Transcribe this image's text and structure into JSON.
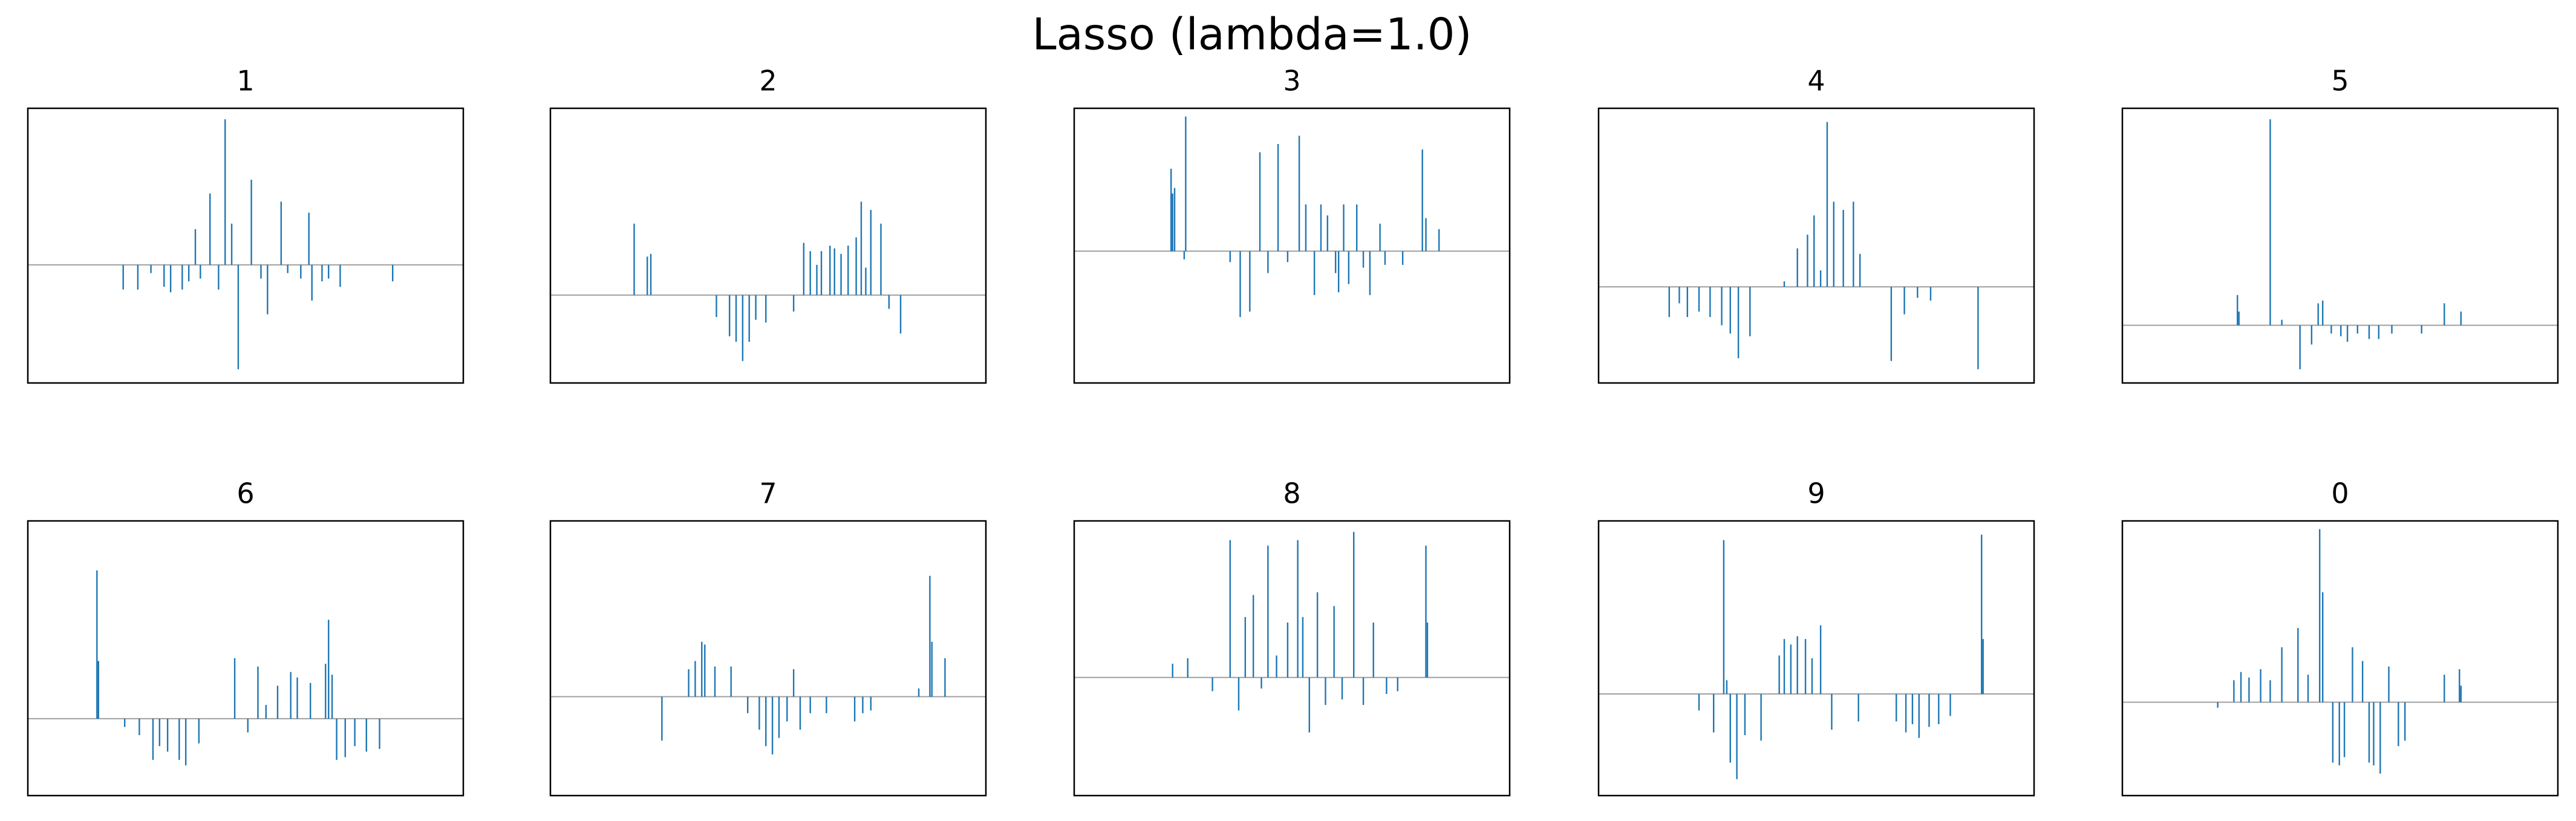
{
  "title": "Lasso (lambda=1.0)",
  "chart_data": [
    {
      "type": "bar",
      "title": "1",
      "color": "#1f77b4",
      "xlim": [
        -40,
        823
      ],
      "ylim": [
        -4.3,
        5.7
      ],
      "x": [
        149,
        178,
        204,
        230,
        243,
        266,
        279,
        292,
        302,
        321,
        338,
        351,
        364,
        377,
        403,
        422,
        435,
        462,
        475,
        501,
        517,
        523,
        543,
        556,
        579,
        683
      ],
      "values": [
        -0.9,
        -0.9,
        -0.3,
        -0.8,
        -1.0,
        -0.9,
        -0.6,
        1.3,
        -0.5,
        2.6,
        -0.9,
        5.3,
        1.5,
        -3.8,
        3.1,
        -0.5,
        -1.8,
        2.3,
        -0.3,
        -0.5,
        1.9,
        -1.3,
        -0.6,
        -0.5,
        -0.8,
        -0.6
      ]
    },
    {
      "type": "bar",
      "title": "2",
      "color": "#1f77b4",
      "xlim": [
        -40,
        823
      ],
      "ylim": [
        -3.2,
        6.8
      ],
      "x": [
        126,
        152,
        159,
        289,
        315,
        328,
        341,
        354,
        367,
        387,
        442,
        462,
        475,
        488,
        497,
        514,
        523,
        536,
        550,
        566,
        576,
        585,
        595,
        615,
        631,
        654
      ],
      "values": [
        2.6,
        1.4,
        1.5,
        -0.8,
        -1.5,
        -1.7,
        -2.4,
        -1.7,
        -0.9,
        -1.0,
        -0.6,
        1.9,
        1.6,
        1.1,
        1.6,
        1.8,
        1.7,
        1.5,
        1.8,
        2.1,
        3.4,
        1.0,
        3.1,
        2.6,
        -0.5,
        -1.4
      ]
    },
    {
      "type": "bar",
      "title": "3",
      "color": "#1f77b4",
      "xlim": [
        -40,
        823
      ],
      "ylim": [
        -4.8,
        5.2
      ],
      "x": [
        152,
        155,
        159,
        178,
        181,
        269,
        289,
        308,
        328,
        344,
        364,
        383,
        406,
        419,
        436,
        449,
        462,
        478,
        484,
        494,
        504,
        520,
        533,
        546,
        566,
        576,
        611,
        650,
        657,
        683
      ],
      "values": [
        3.0,
        2.1,
        2.3,
        -0.3,
        4.9,
        -0.4,
        -2.4,
        -2.2,
        3.6,
        -0.8,
        3.9,
        -0.4,
        4.2,
        1.7,
        -1.6,
        1.7,
        1.3,
        -0.8,
        -1.5,
        1.7,
        -1.2,
        1.7,
        -0.6,
        -1.6,
        1.0,
        -0.5,
        -0.5,
        3.7,
        1.2,
        0.8
      ]
    },
    {
      "type": "bar",
      "title": "4",
      "color": "#1f77b4",
      "xlim": [
        -40,
        823
      ],
      "ylim": [
        -3.5,
        6.5
      ],
      "x": [
        100,
        120,
        136,
        159,
        181,
        204,
        221,
        237,
        260,
        328,
        354,
        374,
        387,
        400,
        413,
        426,
        445,
        465,
        478,
        540,
        566,
        592,
        618,
        712
      ],
      "values": [
        -1.1,
        -0.6,
        -1.1,
        -0.9,
        -1.1,
        -1.4,
        -1.7,
        -2.6,
        -1.8,
        0.2,
        1.4,
        1.9,
        2.6,
        0.6,
        6.0,
        3.1,
        2.8,
        3.1,
        1.2,
        -2.7,
        -1.0,
        -0.4,
        -0.5,
        -3.0
      ]
    },
    {
      "type": "bar",
      "title": "5",
      "color": "#1f77b4",
      "xlim": [
        -40,
        823
      ],
      "ylim": [
        -2.1,
        7.9
      ],
      "x": [
        188,
        191,
        253,
        276,
        312,
        335,
        348,
        357,
        374,
        393,
        406,
        426,
        449,
        468,
        494,
        553,
        598,
        631
      ],
      "values": [
        1.1,
        0.5,
        7.5,
        0.2,
        -1.6,
        -0.7,
        0.8,
        0.9,
        -0.3,
        -0.4,
        -0.6,
        -0.3,
        -0.5,
        -0.5,
        -0.3,
        -0.3,
        0.8,
        0.5
      ]
    },
    {
      "type": "bar",
      "title": "6",
      "color": "#1f77b4",
      "xlim": [
        -40,
        823
      ],
      "ylim": [
        -2.8,
        7.2
      ],
      "x": [
        97,
        100,
        152,
        181,
        208,
        221,
        237,
        260,
        273,
        299,
        370,
        396,
        416,
        432,
        455,
        481,
        494,
        520,
        550,
        556,
        563,
        572,
        589,
        608,
        631,
        657
      ],
      "values": [
        5.4,
        2.1,
        -0.3,
        -0.6,
        -1.5,
        -1.0,
        -1.2,
        -1.5,
        -1.7,
        -0.9,
        2.2,
        -0.5,
        1.9,
        0.5,
        1.2,
        1.7,
        1.5,
        1.3,
        2.0,
        3.6,
        1.6,
        -1.5,
        -1.4,
        -1.0,
        -1.2,
        -1.1
      ]
    },
    {
      "type": "bar",
      "title": "7",
      "color": "#1f77b4",
      "xlim": [
        -40,
        823
      ],
      "ylim": [
        -3.6,
        6.4
      ],
      "x": [
        181,
        234,
        247,
        260,
        266,
        286,
        318,
        351,
        374,
        387,
        400,
        413,
        429,
        442,
        455,
        475,
        507,
        563,
        579,
        595,
        690,
        712,
        716,
        742
      ],
      "values": [
        -1.6,
        1.0,
        1.3,
        2.0,
        1.9,
        1.1,
        1.1,
        -0.6,
        -1.2,
        -1.8,
        -2.1,
        -1.5,
        -0.9,
        1.0,
        -1.2,
        -0.6,
        -0.6,
        -0.9,
        -0.6,
        -0.5,
        0.3,
        4.4,
        2.0,
        1.4
      ]
    },
    {
      "type": "bar",
      "title": "8",
      "color": "#1f77b4",
      "xlim": [
        -40,
        823
      ],
      "ylim": [
        -4.3,
        5.7
      ],
      "x": [
        155,
        185,
        234,
        269,
        286,
        299,
        315,
        331,
        344,
        361,
        383,
        403,
        413,
        426,
        442,
        458,
        475,
        491,
        514,
        533,
        553,
        579,
        601,
        657,
        660
      ],
      "values": [
        0.5,
        0.7,
        -0.5,
        5.0,
        -1.2,
        2.2,
        3.0,
        -0.4,
        4.8,
        0.8,
        2.0,
        5.0,
        2.2,
        -2.0,
        3.1,
        -1.0,
        2.6,
        -0.8,
        5.3,
        -1.0,
        2.0,
        -0.6,
        -0.5,
        4.8,
        2.0
      ]
    },
    {
      "type": "bar",
      "title": "9",
      "color": "#1f77b4",
      "xlim": [
        -40,
        823
      ],
      "ylim": [
        -3.7,
        6.3
      ],
      "x": [
        159,
        188,
        208,
        214,
        221,
        234,
        250,
        282,
        318,
        328,
        341,
        354,
        370,
        383,
        400,
        422,
        475,
        550,
        569,
        582,
        595,
        615,
        634,
        657,
        719,
        722
      ],
      "values": [
        -0.6,
        -1.4,
        5.6,
        0.5,
        -2.5,
        -3.1,
        -1.5,
        -1.7,
        1.4,
        2.0,
        1.8,
        2.1,
        2.0,
        1.3,
        2.5,
        -1.3,
        -1.0,
        -1.0,
        -1.4,
        -1.1,
        -1.6,
        -1.2,
        -1.1,
        -0.8,
        5.8,
        2.0
      ]
    },
    {
      "type": "bar",
      "title": "0",
      "color": "#1f77b4",
      "xlim": [
        -40,
        823
      ],
      "ylim": [
        -3.4,
        6.6
      ],
      "x": [
        149,
        181,
        195,
        211,
        234,
        253,
        276,
        308,
        328,
        351,
        357,
        377,
        390,
        400,
        416,
        436,
        449,
        458,
        471,
        488,
        507,
        520,
        598,
        628,
        631
      ],
      "values": [
        -0.2,
        0.8,
        1.1,
        0.9,
        1.2,
        0.8,
        2.0,
        2.7,
        1.0,
        6.3,
        4.0,
        -2.2,
        -2.3,
        -2.0,
        2.0,
        1.5,
        -2.2,
        -2.3,
        -2.6,
        1.3,
        -1.6,
        -1.4,
        1.0,
        1.2,
        0.6
      ]
    }
  ]
}
